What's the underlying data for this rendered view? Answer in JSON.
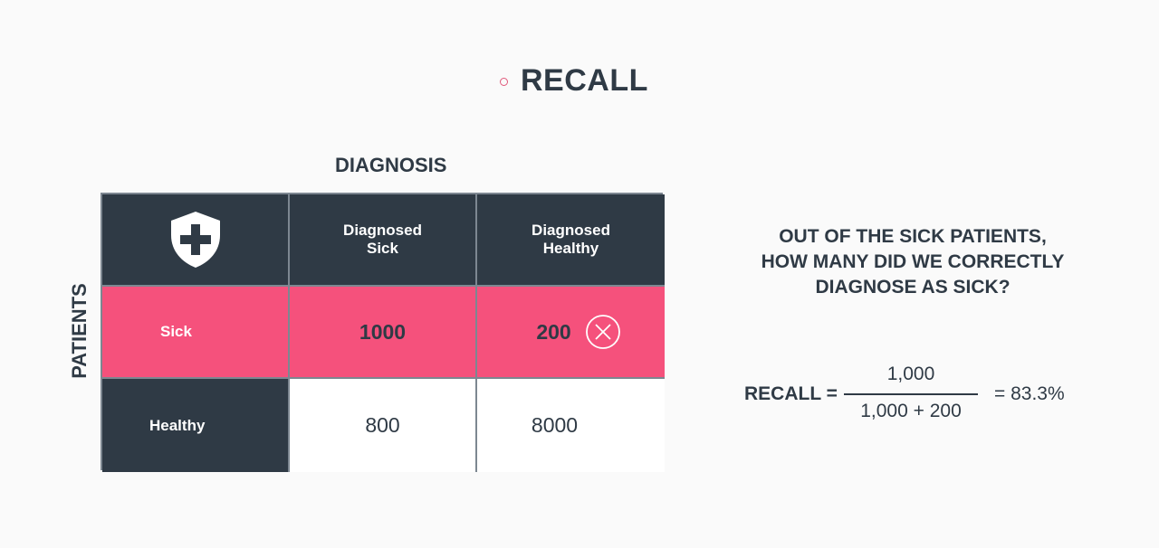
{
  "title": "RECALL",
  "diagnosis_label": "DIAGNOSIS",
  "patients_label": "PATIENTS",
  "matrix": {
    "col_headers": [
      "Diagnosed\nSick",
      "Diagnosed\nHealthy"
    ],
    "rows": [
      {
        "label": "Sick",
        "values": [
          "1000",
          "200"
        ]
      },
      {
        "label": "Healthy",
        "values": [
          "800",
          "8000"
        ]
      }
    ],
    "icon": "shield-cross-icon",
    "mark_icon": "close-circle-icon"
  },
  "question": "OUT OF THE SICK PATIENTS,\nHOW MANY DID WE CORRECTLY\nDIAGNOSE AS SICK?",
  "formula": {
    "label": "RECALL =",
    "numerator": "1,000",
    "denominator": "1,000 + 200",
    "result": "= 83.3%"
  },
  "colors": {
    "dark": "#2f3a45",
    "pink": "#f5517c",
    "border": "#7d8791",
    "background": "#fafafa"
  }
}
